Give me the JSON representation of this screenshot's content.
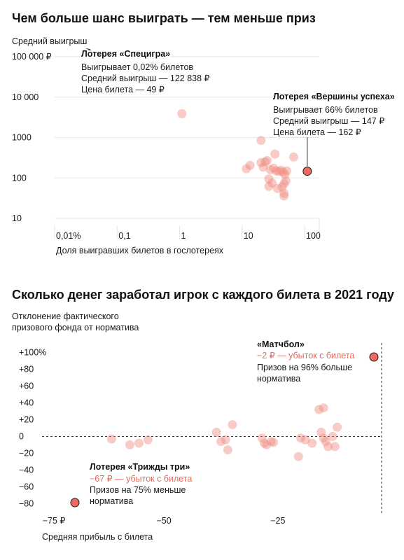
{
  "colors": {
    "dot": "#f08c80",
    "highlight_fill": "#ef6a5c",
    "highlight_stroke": "#1a1a1a",
    "grid": "#e6e6e6",
    "text": "#1a1a1a",
    "negative_text": "#e8695a"
  },
  "chart_data": [
    {
      "type": "scatter",
      "title": "Чем больше шанс выиграть — тем меньше приз",
      "ylabel": "Средний выигрыш",
      "xlabel": "Доля выигравших билетов в гослотереях",
      "xscale": "log",
      "yscale": "log",
      "xlim": [
        0.01,
        100
      ],
      "ylim": [
        10,
        100000
      ],
      "xticks": [
        0.01,
        0.1,
        1,
        10,
        100
      ],
      "xtick_labels": [
        "0,01%",
        "0,1",
        "1",
        "10",
        "100"
      ],
      "yticks": [
        10,
        100,
        1000,
        10000,
        100000
      ],
      "ytick_labels": [
        "10",
        "100",
        "1000",
        "10 000",
        "100 000 ₽"
      ],
      "grid": true,
      "points": [
        {
          "x": 0.65,
          "y": 3900
        },
        {
          "x": 12,
          "y": 850
        },
        {
          "x": 8,
          "y": 205
        },
        {
          "x": 7,
          "y": 170
        },
        {
          "x": 12,
          "y": 240
        },
        {
          "x": 14,
          "y": 250
        },
        {
          "x": 15,
          "y": 270
        },
        {
          "x": 13,
          "y": 185
        },
        {
          "x": 17,
          "y": 160
        },
        {
          "x": 19,
          "y": 175
        },
        {
          "x": 21,
          "y": 150
        },
        {
          "x": 23,
          "y": 145
        },
        {
          "x": 25,
          "y": 155
        },
        {
          "x": 27,
          "y": 140
        },
        {
          "x": 29,
          "y": 120
        },
        {
          "x": 31,
          "y": 150
        },
        {
          "x": 20,
          "y": 390
        },
        {
          "x": 40,
          "y": 330
        },
        {
          "x": 16,
          "y": 95
        },
        {
          "x": 18,
          "y": 75
        },
        {
          "x": 16,
          "y": 62
        },
        {
          "x": 22,
          "y": 55
        },
        {
          "x": 26,
          "y": 60
        },
        {
          "x": 28,
          "y": 72
        },
        {
          "x": 30,
          "y": 85
        },
        {
          "x": 28,
          "y": 42
        },
        {
          "x": 28,
          "y": 36
        }
      ],
      "highlights": [
        {
          "x": 0.02,
          "y": 122838,
          "name": "Лотерея «Специгра»",
          "lines": [
            "Выигрывает 0,02% билетов",
            "Средний выигрыш — 122 838 ₽",
            "Цена билета — 49 ₽"
          ]
        },
        {
          "x": 66,
          "y": 147,
          "name": "Лотерея «Вершины успеха»",
          "lines": [
            "Выигрывает 66% билетов",
            "Средний выигрыш — 147 ₽",
            "Цена билета — 162 ₽"
          ]
        }
      ]
    },
    {
      "type": "scatter",
      "title": "Сколько денег заработал игрок с каждого билета в 2021 году",
      "ylabel_lines": [
        "Отклонение фактического",
        "призового фонда от норматива"
      ],
      "xlabel": "Средняя прибыль с билета",
      "xlim": [
        -80,
        0
      ],
      "ylim": [
        -80,
        100
      ],
      "xticks": [
        -75,
        -50,
        -25
      ],
      "xtick_labels": [
        "−75 ₽",
        "−50",
        "−25"
      ],
      "yticks": [
        100,
        80,
        60,
        40,
        20,
        0,
        -20,
        -40,
        -60,
        -80
      ],
      "ytick_labels": [
        "+100%",
        "+80",
        "+60",
        "+40",
        "+20",
        "0",
        "−20",
        "−40",
        "−60",
        "−80"
      ],
      "zero_line": true,
      "points": [
        {
          "x": -62,
          "y": -3
        },
        {
          "x": -58,
          "y": -10
        },
        {
          "x": -56,
          "y": -8
        },
        {
          "x": -54,
          "y": -4
        },
        {
          "x": -39,
          "y": 5
        },
        {
          "x": -38,
          "y": -6
        },
        {
          "x": -37,
          "y": -4
        },
        {
          "x": -36.5,
          "y": -16
        },
        {
          "x": -35.5,
          "y": 14
        },
        {
          "x": -29,
          "y": -2
        },
        {
          "x": -28.5,
          "y": -8
        },
        {
          "x": -28,
          "y": -10
        },
        {
          "x": -27,
          "y": -6
        },
        {
          "x": -26.5,
          "y": -7
        },
        {
          "x": -21,
          "y": -24
        },
        {
          "x": -20.5,
          "y": -2
        },
        {
          "x": -19.5,
          "y": -4
        },
        {
          "x": -18,
          "y": -8
        },
        {
          "x": -16.5,
          "y": 32
        },
        {
          "x": -15.5,
          "y": 34
        },
        {
          "x": -16,
          "y": 5
        },
        {
          "x": -15.5,
          "y": -2
        },
        {
          "x": -15,
          "y": -6
        },
        {
          "x": -14.5,
          "y": -12
        },
        {
          "x": -13.5,
          "y": 0
        },
        {
          "x": -13,
          "y": -12
        },
        {
          "x": -12.5,
          "y": 11
        }
      ],
      "highlights": [
        {
          "x": -2,
          "y": 96,
          "name": "«Матчбол»",
          "loss": "−2 ₽ — убыток с билета",
          "lines": [
            "Призов на 96% больше",
            "норматива"
          ]
        },
        {
          "x": -67,
          "y": -75,
          "name": "Лотерея «Трижды три»",
          "loss": "−67 ₽ — убыток с билета",
          "lines": [
            "Призов на 75% меньше",
            "норматива"
          ]
        }
      ]
    }
  ]
}
